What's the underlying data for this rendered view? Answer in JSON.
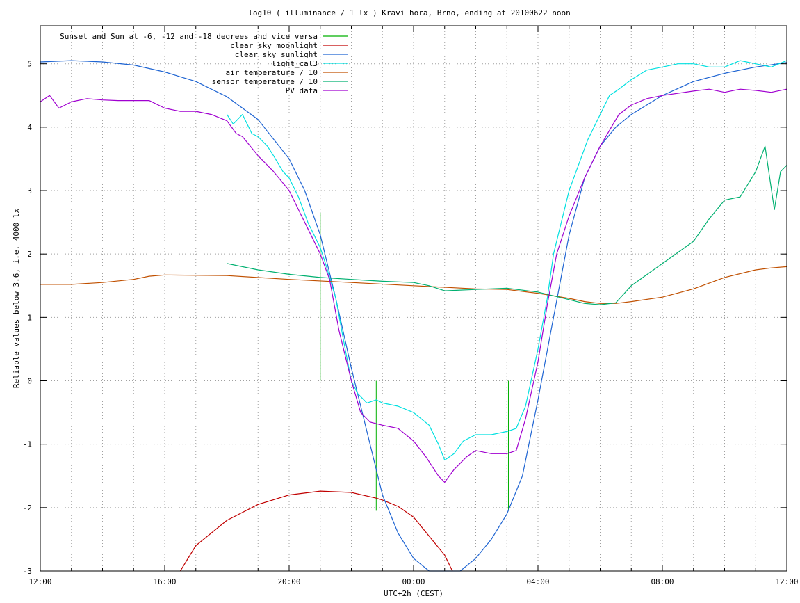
{
  "chart_data": {
    "type": "line",
    "title": "log10 ( illuminance / 1 lx ) Kravi hora, Brno, ending at 20100622 noon",
    "xlabel": "UTC+2h (CEST)",
    "ylabel": "Reliable values below 3.6, i.e. 4000 lx",
    "x_unit": "hours from 12:00 (CEST)",
    "xlim": [
      0,
      24
    ],
    "ylim": [
      -3,
      5.6
    ],
    "x_ticks": [
      {
        "value": 0,
        "label": "12:00"
      },
      {
        "value": 4,
        "label": "16:00"
      },
      {
        "value": 8,
        "label": "20:00"
      },
      {
        "value": 12,
        "label": "00:00"
      },
      {
        "value": 16,
        "label": "04:00"
      },
      {
        "value": 20,
        "label": "08:00"
      },
      {
        "value": 24,
        "label": "12:00"
      }
    ],
    "y_ticks": [
      {
        "value": -3,
        "label": "-3"
      },
      {
        "value": -2,
        "label": "-2"
      },
      {
        "value": -1,
        "label": "-1"
      },
      {
        "value": 0,
        "label": "0"
      },
      {
        "value": 1,
        "label": "1"
      },
      {
        "value": 2,
        "label": "2"
      },
      {
        "value": 3,
        "label": "3"
      },
      {
        "value": 4,
        "label": "4"
      },
      {
        "value": 5,
        "label": "5"
      }
    ],
    "grid": true,
    "legend_position": "top-left",
    "series": [
      {
        "name": "Sunset and Sun at -6, -12 and -18 degrees and vice versa",
        "color": "#00b000",
        "style": "impulses",
        "points": [
          [
            9.0,
            2.65
          ],
          [
            10.8,
            -2.05
          ],
          [
            15.05,
            -2.05
          ],
          [
            16.77,
            2.3
          ]
        ]
      },
      {
        "name": "clear sky moonlight",
        "color": "#c00000",
        "style": "line",
        "points": [
          [
            4.5,
            -3.0
          ],
          [
            5.0,
            -2.6
          ],
          [
            6.0,
            -2.2
          ],
          [
            7.0,
            -1.95
          ],
          [
            8.0,
            -1.8
          ],
          [
            9.0,
            -1.74
          ],
          [
            10.0,
            -1.76
          ],
          [
            10.8,
            -1.85
          ],
          [
            11.0,
            -1.88
          ],
          [
            11.5,
            -1.98
          ],
          [
            12.0,
            -2.15
          ],
          [
            12.5,
            -2.45
          ],
          [
            13.0,
            -2.75
          ],
          [
            13.25,
            -3.0
          ]
        ]
      },
      {
        "name": "clear sky sunlight",
        "color": "#1e64d2",
        "style": "line",
        "points": [
          [
            0.0,
            5.03
          ],
          [
            1.0,
            5.05
          ],
          [
            2.0,
            5.03
          ],
          [
            3.0,
            4.98
          ],
          [
            4.0,
            4.87
          ],
          [
            5.0,
            4.72
          ],
          [
            6.0,
            4.48
          ],
          [
            7.0,
            4.12
          ],
          [
            8.0,
            3.5
          ],
          [
            8.5,
            3.0
          ],
          [
            9.0,
            2.3
          ],
          [
            9.5,
            1.3
          ],
          [
            10.0,
            0.2
          ],
          [
            10.5,
            -0.8
          ],
          [
            11.0,
            -1.8
          ],
          [
            11.5,
            -2.4
          ],
          [
            12.0,
            -2.8
          ],
          [
            12.5,
            -3.0
          ],
          [
            13.5,
            -3.0
          ],
          [
            14.0,
            -2.8
          ],
          [
            14.5,
            -2.5
          ],
          [
            15.0,
            -2.1
          ],
          [
            15.5,
            -1.5
          ],
          [
            16.0,
            -0.3
          ],
          [
            16.5,
            1.0
          ],
          [
            17.0,
            2.3
          ],
          [
            17.5,
            3.2
          ],
          [
            18.0,
            3.7
          ],
          [
            18.5,
            4.0
          ],
          [
            19.0,
            4.2
          ],
          [
            20.0,
            4.5
          ],
          [
            21.0,
            4.72
          ],
          [
            22.0,
            4.85
          ],
          [
            23.0,
            4.95
          ],
          [
            24.0,
            5.02
          ]
        ]
      },
      {
        "name": "light_cal3",
        "color": "#00e0e0",
        "style": "line",
        "points": [
          [
            6.0,
            4.2
          ],
          [
            6.2,
            4.05
          ],
          [
            6.5,
            4.2
          ],
          [
            6.8,
            3.9
          ],
          [
            7.0,
            3.85
          ],
          [
            7.3,
            3.7
          ],
          [
            7.5,
            3.55
          ],
          [
            7.8,
            3.3
          ],
          [
            8.0,
            3.2
          ],
          [
            8.3,
            2.9
          ],
          [
            8.6,
            2.5
          ],
          [
            8.8,
            2.3
          ],
          [
            9.0,
            2.1
          ],
          [
            9.2,
            1.8
          ],
          [
            9.5,
            1.3
          ],
          [
            9.8,
            0.5
          ],
          [
            10.0,
            0.0
          ],
          [
            10.2,
            -0.2
          ],
          [
            10.5,
            -0.35
          ],
          [
            10.8,
            -0.3
          ],
          [
            11.0,
            -0.35
          ],
          [
            11.5,
            -0.4
          ],
          [
            12.0,
            -0.5
          ],
          [
            12.5,
            -0.7
          ],
          [
            12.8,
            -1.0
          ],
          [
            13.0,
            -1.25
          ],
          [
            13.3,
            -1.15
          ],
          [
            13.6,
            -0.95
          ],
          [
            14.0,
            -0.85
          ],
          [
            14.5,
            -0.85
          ],
          [
            15.0,
            -0.8
          ],
          [
            15.3,
            -0.75
          ],
          [
            15.6,
            -0.4
          ],
          [
            16.0,
            0.5
          ],
          [
            16.3,
            1.3
          ],
          [
            16.5,
            2.0
          ],
          [
            16.8,
            2.6
          ],
          [
            17.0,
            3.0
          ],
          [
            17.3,
            3.4
          ],
          [
            17.6,
            3.8
          ],
          [
            18.0,
            4.2
          ],
          [
            18.3,
            4.5
          ],
          [
            18.6,
            4.6
          ],
          [
            19.0,
            4.75
          ],
          [
            19.5,
            4.9
          ],
          [
            20.0,
            4.95
          ],
          [
            20.5,
            5.0
          ],
          [
            21.0,
            5.0
          ],
          [
            21.5,
            4.95
          ],
          [
            22.0,
            4.95
          ],
          [
            22.5,
            5.05
          ],
          [
            23.0,
            5.0
          ],
          [
            23.5,
            4.95
          ],
          [
            24.0,
            5.05
          ]
        ]
      },
      {
        "name": "air temperature / 10",
        "color": "#c05000",
        "style": "line",
        "points": [
          [
            0.0,
            1.52
          ],
          [
            1.0,
            1.52
          ],
          [
            2.0,
            1.55
          ],
          [
            3.0,
            1.6
          ],
          [
            3.5,
            1.65
          ],
          [
            4.0,
            1.67
          ],
          [
            6.0,
            1.66
          ],
          [
            8.0,
            1.6
          ],
          [
            10.0,
            1.55
          ],
          [
            12.0,
            1.5
          ],
          [
            14.0,
            1.45
          ],
          [
            15.0,
            1.44
          ],
          [
            16.0,
            1.38
          ],
          [
            17.0,
            1.3
          ],
          [
            17.5,
            1.25
          ],
          [
            18.0,
            1.22
          ],
          [
            18.5,
            1.22
          ],
          [
            19.0,
            1.25
          ],
          [
            20.0,
            1.32
          ],
          [
            21.0,
            1.45
          ],
          [
            22.0,
            1.63
          ],
          [
            23.0,
            1.75
          ],
          [
            23.5,
            1.78
          ],
          [
            24.0,
            1.8
          ]
        ]
      },
      {
        "name": "sensor temperature / 10",
        "color": "#00b070",
        "style": "line",
        "points": [
          [
            6.0,
            1.85
          ],
          [
            7.0,
            1.75
          ],
          [
            8.0,
            1.68
          ],
          [
            9.0,
            1.63
          ],
          [
            10.0,
            1.6
          ],
          [
            11.0,
            1.57
          ],
          [
            12.0,
            1.55
          ],
          [
            12.5,
            1.5
          ],
          [
            13.0,
            1.42
          ],
          [
            14.0,
            1.44
          ],
          [
            15.0,
            1.46
          ],
          [
            16.0,
            1.4
          ],
          [
            17.0,
            1.28
          ],
          [
            17.5,
            1.22
          ],
          [
            18.0,
            1.2
          ],
          [
            18.5,
            1.23
          ],
          [
            19.0,
            1.5
          ],
          [
            20.0,
            1.85
          ],
          [
            21.0,
            2.2
          ],
          [
            21.5,
            2.55
          ],
          [
            22.0,
            2.85
          ],
          [
            22.5,
            2.9
          ],
          [
            23.0,
            3.3
          ],
          [
            23.3,
            3.7
          ],
          [
            23.6,
            2.7
          ],
          [
            23.8,
            3.3
          ],
          [
            24.0,
            3.4
          ]
        ]
      },
      {
        "name": "PV data",
        "color": "#a000d0",
        "style": "line",
        "points": [
          [
            0.0,
            4.4
          ],
          [
            0.3,
            4.5
          ],
          [
            0.6,
            4.3
          ],
          [
            1.0,
            4.4
          ],
          [
            1.5,
            4.45
          ],
          [
            2.0,
            4.43
          ],
          [
            2.5,
            4.42
          ],
          [
            3.0,
            4.42
          ],
          [
            3.5,
            4.42
          ],
          [
            4.0,
            4.3
          ],
          [
            4.5,
            4.25
          ],
          [
            5.0,
            4.25
          ],
          [
            5.5,
            4.2
          ],
          [
            6.0,
            4.1
          ],
          [
            6.3,
            3.9
          ],
          [
            6.5,
            3.85
          ],
          [
            7.0,
            3.55
          ],
          [
            7.5,
            3.3
          ],
          [
            8.0,
            3.0
          ],
          [
            8.3,
            2.7
          ],
          [
            8.6,
            2.4
          ],
          [
            9.0,
            2.0
          ],
          [
            9.3,
            1.6
          ],
          [
            9.6,
            0.8
          ],
          [
            10.0,
            0.0
          ],
          [
            10.3,
            -0.5
          ],
          [
            10.6,
            -0.65
          ],
          [
            11.0,
            -0.7
          ],
          [
            11.5,
            -0.75
          ],
          [
            12.0,
            -0.95
          ],
          [
            12.4,
            -1.2
          ],
          [
            12.8,
            -1.5
          ],
          [
            13.0,
            -1.6
          ],
          [
            13.3,
            -1.4
          ],
          [
            13.7,
            -1.2
          ],
          [
            14.0,
            -1.1
          ],
          [
            14.5,
            -1.15
          ],
          [
            15.0,
            -1.15
          ],
          [
            15.3,
            -1.1
          ],
          [
            15.6,
            -0.6
          ],
          [
            16.0,
            0.3
          ],
          [
            16.3,
            1.2
          ],
          [
            16.6,
            2.0
          ],
          [
            17.0,
            2.6
          ],
          [
            17.5,
            3.2
          ],
          [
            18.0,
            3.7
          ],
          [
            18.3,
            3.95
          ],
          [
            18.6,
            4.2
          ],
          [
            19.0,
            4.35
          ],
          [
            19.5,
            4.45
          ],
          [
            20.0,
            4.5
          ],
          [
            21.0,
            4.57
          ],
          [
            21.5,
            4.6
          ],
          [
            22.0,
            4.55
          ],
          [
            22.5,
            4.6
          ],
          [
            23.0,
            4.58
          ],
          [
            23.5,
            4.55
          ],
          [
            24.0,
            4.6
          ]
        ]
      }
    ]
  }
}
